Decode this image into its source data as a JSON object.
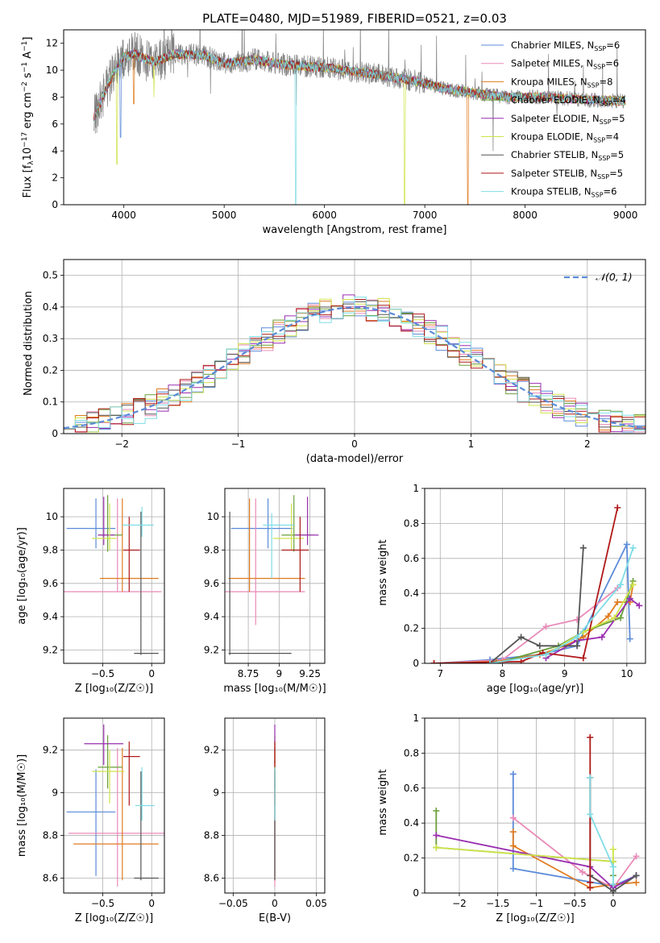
{
  "series_legend": [
    {
      "label": "Chabrier MILES",
      "n": "6",
      "color": "#5b8bd8"
    },
    {
      "label": "Salpeter MILES",
      "n": "6",
      "color": "#e98ab8"
    },
    {
      "label": "Kroupa MILES",
      "n": "8",
      "color": "#e07b20"
    },
    {
      "label": "Chabrier ELODIE",
      "n": "4",
      "color": "#6a9f3a"
    },
    {
      "label": "Salpeter ELODIE",
      "n": "5",
      "color": "#9a2db0"
    },
    {
      "label": "Kroupa ELODIE",
      "n": "4",
      "color": "#cfe34a"
    },
    {
      "label": "Chabrier STELIB",
      "n": "5",
      "color": "#555555"
    },
    {
      "label": "Salpeter STELIB",
      "n": "5",
      "color": "#b01818"
    },
    {
      "label": "Kroupa STELIB",
      "n": "6",
      "color": "#7fdde6"
    }
  ],
  "chart_data": [
    {
      "id": "spectrum",
      "type": "line",
      "title": "PLATE=0480, MJD=51989, FIBERID=0521, z=0.03",
      "xlabel": "wavelength [Angstrom, rest frame]",
      "ylabel_parts": [
        "Flux [f",
        "λ",
        "10",
        "−17",
        " erg cm",
        "−2",
        " s",
        "−1",
        " A",
        "−1",
        "]"
      ],
      "xlim": [
        3400,
        9200
      ],
      "ylim": [
        0,
        13
      ],
      "xticks": [
        4000,
        5000,
        6000,
        7000,
        8000,
        9000
      ],
      "yticks": [
        0,
        2,
        4,
        6,
        8,
        10,
        12
      ],
      "grid": false,
      "legend_position": "top-right",
      "data_color": "#808080",
      "model_continuum": {
        "x": [
          3700,
          3800,
          3900,
          4000,
          4100,
          4200,
          4300,
          4500,
          4800,
          5000,
          5300,
          5600,
          6000,
          6300,
          6600,
          6900,
          7200,
          7500,
          7800,
          8200,
          8600,
          9000
        ],
        "y": [
          6.4,
          8.2,
          9.8,
          11.0,
          11.2,
          10.9,
          10.6,
          11.2,
          11.1,
          10.5,
          10.8,
          10.4,
          10.2,
          9.9,
          9.6,
          9.2,
          8.6,
          8.3,
          8.0,
          8.0,
          7.8,
          7.7
        ]
      },
      "model_dips": [
        {
          "x": 3933,
          "y": 3.0,
          "series": 5
        },
        {
          "x": 3968,
          "y": 5.0,
          "series": 0
        },
        {
          "x": 4101,
          "y": 7.5,
          "series": 2
        },
        {
          "x": 4300,
          "y": 8.0,
          "series": 5
        },
        {
          "x": 5715,
          "y": 0.0,
          "series": 8
        },
        {
          "x": 6800,
          "y": 0.0,
          "series": 5
        },
        {
          "x": 7430,
          "y": 0.0,
          "series": 2
        }
      ]
    },
    {
      "id": "residuals",
      "type": "histogram",
      "xlabel": "(data-model)/error",
      "ylabel": "Normed distribution",
      "xlim": [
        -2.5,
        2.5
      ],
      "ylim": [
        0,
        0.55
      ],
      "xticks": [
        -2,
        -1,
        0,
        1,
        2
      ],
      "yticks": [
        0.0,
        0.1,
        0.2,
        0.3,
        0.4,
        0.5
      ],
      "grid": true,
      "bins": {
        "start": -2.5,
        "width": 0.1,
        "count": 50
      },
      "reference": {
        "label": "𝒩(0, 1)",
        "mu": 0,
        "sigma": 1,
        "color": "#5b8bd8",
        "style": "dashed"
      },
      "legend_position": "top-right"
    },
    {
      "id": "age-vs-z",
      "type": "errorbar",
      "xlabel": "Z [log₁₀(Z/Z☉)]",
      "ylabel": "age  [log₁₀(age/yr)]",
      "xlim": [
        -0.9,
        0.13
      ],
      "ylim": [
        9.12,
        10.17
      ],
      "xticks": [
        -0.5,
        0.0
      ],
      "yticks": [
        9.2,
        9.4,
        9.6,
        9.8,
        10.0
      ],
      "grid": true,
      "points": [
        {
          "series": 0,
          "x": -0.57,
          "y": 9.93,
          "xerr": [
            0.3,
            0.2
          ],
          "yerr": [
            0.12,
            0.18
          ]
        },
        {
          "series": 1,
          "x": -0.35,
          "y": 9.55,
          "xerr": [
            0.55,
            0.45
          ],
          "yerr": [
            0.0,
            0.56
          ]
        },
        {
          "series": 2,
          "x": -0.3,
          "y": 9.63,
          "xerr": [
            0.23,
            0.37
          ],
          "yerr": [
            0.08,
            0.48
          ]
        },
        {
          "series": 3,
          "x": -0.45,
          "y": 9.89,
          "xerr": [
            0.1,
            0.15
          ],
          "yerr": [
            0.1,
            0.24
          ]
        },
        {
          "series": 4,
          "x": -0.49,
          "y": 9.89,
          "xerr": [
            0.06,
            0.11
          ],
          "yerr": [
            0.06,
            0.23
          ]
        },
        {
          "series": 5,
          "x": -0.43,
          "y": 9.87,
          "xerr": [
            0.18,
            0.07
          ],
          "yerr": [
            0.07,
            0.21
          ]
        },
        {
          "series": 6,
          "x": -0.11,
          "y": 9.18,
          "xerr": [
            0.07,
            0.18
          ],
          "yerr": [
            0.01,
            0.85
          ]
        },
        {
          "series": 7,
          "x": -0.23,
          "y": 9.8,
          "xerr": [
            0.06,
            0.11
          ],
          "yerr": [
            0.25,
            0.2
          ]
        },
        {
          "series": 8,
          "x": -0.1,
          "y": 9.95,
          "xerr": [
            0.2,
            0.12
          ],
          "yerr": [
            0.07,
            0.11
          ]
        }
      ]
    },
    {
      "id": "age-vs-mass",
      "type": "errorbar",
      "xlabel": "mass [log₁₀(M/M☉)]",
      "xlim": [
        8.56,
        9.37
      ],
      "ylim": [
        9.12,
        10.17
      ],
      "xticks": [
        8.75,
        9.0,
        9.25
      ],
      "yticks": [
        9.2,
        9.4,
        9.6,
        9.8,
        10.0
      ],
      "grid": true,
      "points": [
        {
          "series": 0,
          "x": 8.91,
          "y": 9.93,
          "xerr": [
            0.3,
            0.2
          ],
          "yerr": [
            0.12,
            0.18
          ]
        },
        {
          "series": 1,
          "x": 8.81,
          "y": 9.55,
          "xerr": [
            0.25,
            0.4
          ],
          "yerr": [
            0.2,
            0.56
          ]
        },
        {
          "series": 2,
          "x": 8.76,
          "y": 9.63,
          "xerr": [
            0.17,
            0.45
          ],
          "yerr": [
            0.08,
            0.48
          ]
        },
        {
          "series": 3,
          "x": 9.12,
          "y": 9.89,
          "xerr": [
            0.1,
            0.15
          ],
          "yerr": [
            0.1,
            0.24
          ]
        },
        {
          "series": 4,
          "x": 9.23,
          "y": 9.89,
          "xerr": [
            0.1,
            0.09
          ],
          "yerr": [
            0.06,
            0.23
          ]
        },
        {
          "series": 5,
          "x": 9.1,
          "y": 9.87,
          "xerr": [
            0.15,
            0.1
          ],
          "yerr": [
            0.07,
            0.21
          ]
        },
        {
          "series": 6,
          "x": 8.6,
          "y": 9.18,
          "xerr": [
            0.01,
            0.5
          ],
          "yerr": [
            0.01,
            0.85
          ]
        },
        {
          "series": 7,
          "x": 9.17,
          "y": 9.8,
          "xerr": [
            0.15,
            0.07
          ],
          "yerr": [
            0.25,
            0.2
          ]
        },
        {
          "series": 8,
          "x": 8.94,
          "y": 9.95,
          "xerr": [
            0.07,
            0.18
          ],
          "yerr": [
            0.32,
            0.07
          ]
        }
      ]
    },
    {
      "id": "weight-vs-age",
      "type": "line",
      "xlabel": "age  [log₁₀(age/yr)]",
      "ylabel": "mass weight",
      "xlim": [
        6.75,
        10.3
      ],
      "ylim": [
        0,
        1.0
      ],
      "xticks": [
        7,
        8,
        9,
        10
      ],
      "yticks": [
        0.0,
        0.2,
        0.4,
        0.6,
        0.8,
        1.0
      ],
      "grid": true,
      "series": [
        {
          "series": 0,
          "x": [
            6.9,
            7.8,
            8.6,
            9.2,
            10.0,
            10.05
          ],
          "y": [
            0.0,
            0.02,
            0.05,
            0.1,
            0.68,
            0.14
          ]
        },
        {
          "series": 1,
          "x": [
            6.9,
            8.0,
            8.7,
            9.2,
            9.85
          ],
          "y": [
            0.0,
            0.02,
            0.21,
            0.25,
            0.43
          ]
        },
        {
          "series": 2,
          "x": [
            6.9,
            7.9,
            8.6,
            9.0,
            9.3,
            9.7,
            9.85,
            10.05,
            10.1
          ],
          "y": [
            0.0,
            0.01,
            0.05,
            0.1,
            0.15,
            0.27,
            0.35,
            0.35,
            0.45
          ]
        },
        {
          "series": 3,
          "x": [
            7.9,
            8.9,
            9.3,
            9.9,
            10.1
          ],
          "y": [
            0.0,
            0.1,
            0.18,
            0.26,
            0.47
          ]
        },
        {
          "series": 4,
          "x": [
            8.7,
            9.2,
            9.6,
            10.05,
            10.2
          ],
          "y": [
            0.03,
            0.13,
            0.15,
            0.37,
            0.33
          ]
        },
        {
          "series": 5,
          "x": [
            8.7,
            9.3,
            9.8,
            10.1
          ],
          "y": [
            0.05,
            0.18,
            0.26,
            0.45
          ]
        },
        {
          "series": 6,
          "x": [
            7.8,
            8.3,
            8.6,
            9.2,
            9.3
          ],
          "y": [
            0.0,
            0.15,
            0.1,
            0.1,
            0.66
          ]
        },
        {
          "series": 7,
          "x": [
            6.9,
            8.3,
            8.65,
            9.3,
            9.85
          ],
          "y": [
            0.0,
            0.01,
            0.06,
            0.03,
            0.89
          ]
        },
        {
          "series": 8,
          "x": [
            7.8,
            8.7,
            9.2,
            9.9,
            10.1
          ],
          "y": [
            0.0,
            0.05,
            0.15,
            0.45,
            0.66
          ]
        }
      ]
    },
    {
      "id": "mass-vs-z",
      "type": "errorbar",
      "xlabel": "Z [log₁₀(Z/Z☉)]",
      "ylabel": "mass [log₁₀(M/M☉)]",
      "xlim": [
        -0.9,
        0.13
      ],
      "ylim": [
        8.53,
        9.35
      ],
      "xticks": [
        -0.5,
        0.0
      ],
      "yticks": [
        8.6,
        8.8,
        9.0,
        9.2
      ],
      "grid": true,
      "points": [
        {
          "series": 0,
          "x": -0.57,
          "y": 8.91,
          "xerr": [
            0.3,
            0.2
          ],
          "yerr": [
            0.3,
            0.2
          ]
        },
        {
          "series": 1,
          "x": -0.35,
          "y": 8.81,
          "xerr": [
            0.5,
            0.5
          ],
          "yerr": [
            0.25,
            0.4
          ]
        },
        {
          "series": 2,
          "x": -0.3,
          "y": 8.76,
          "xerr": [
            0.5,
            0.37
          ],
          "yerr": [
            0.17,
            0.45
          ]
        },
        {
          "series": 3,
          "x": -0.45,
          "y": 9.12,
          "xerr": [
            0.1,
            0.15
          ],
          "yerr": [
            0.1,
            0.15
          ]
        },
        {
          "series": 4,
          "x": -0.49,
          "y": 9.23,
          "xerr": [
            0.2,
            0.2
          ],
          "yerr": [
            0.1,
            0.09
          ]
        },
        {
          "series": 5,
          "x": -0.43,
          "y": 9.1,
          "xerr": [
            0.18,
            0.15
          ],
          "yerr": [
            0.15,
            0.1
          ]
        },
        {
          "series": 6,
          "x": -0.11,
          "y": 8.6,
          "xerr": [
            0.07,
            0.18
          ],
          "yerr": [
            0.01,
            0.5
          ]
        },
        {
          "series": 7,
          "x": -0.23,
          "y": 9.17,
          "xerr": [
            0.06,
            0.11
          ],
          "yerr": [
            0.23,
            0.07
          ]
        },
        {
          "series": 8,
          "x": -0.1,
          "y": 8.94,
          "xerr": [
            0.07,
            0.13
          ],
          "yerr": [
            0.07,
            0.18
          ]
        }
      ]
    },
    {
      "id": "mass-vs-ebv",
      "type": "errorbar",
      "xlabel": "E(B-V)",
      "xlim": [
        -0.06,
        0.06
      ],
      "ylim": [
        8.53,
        9.35
      ],
      "xticks": [
        -0.05,
        0.0,
        0.05
      ],
      "yticks": [
        8.6,
        8.8,
        9.0,
        9.2
      ],
      "grid": true,
      "points": [
        {
          "series": 0,
          "x": 0.0,
          "y": 8.91,
          "yerr": [
            0.3,
            0.2
          ]
        },
        {
          "series": 1,
          "x": 0.0,
          "y": 8.81,
          "yerr": [
            0.25,
            0.4
          ]
        },
        {
          "series": 2,
          "x": 0.0,
          "y": 8.76,
          "yerr": [
            0.17,
            0.45
          ]
        },
        {
          "series": 3,
          "x": 0.0,
          "y": 9.12,
          "yerr": [
            0.1,
            0.15
          ]
        },
        {
          "series": 4,
          "x": 0.0,
          "y": 9.23,
          "yerr": [
            0.1,
            0.09
          ]
        },
        {
          "series": 5,
          "x": 0.0,
          "y": 9.1,
          "yerr": [
            0.15,
            0.1
          ]
        },
        {
          "series": 6,
          "x": 0.0,
          "y": 8.6,
          "yerr": [
            0.01,
            0.5
          ]
        },
        {
          "series": 7,
          "x": 0.0,
          "y": 9.17,
          "yerr": [
            0.23,
            0.07
          ]
        },
        {
          "series": 8,
          "x": 0.0,
          "y": 8.94,
          "yerr": [
            0.07,
            0.18
          ]
        }
      ]
    },
    {
      "id": "weight-vs-z",
      "type": "line",
      "xlabel": "Z [log₁₀(Z/Z☉)]",
      "ylabel": "mass weight",
      "xlim": [
        -2.45,
        0.42
      ],
      "ylim": [
        0,
        1.0
      ],
      "xticks": [
        -2.0,
        -1.5,
        -1.0,
        -0.5,
        0.0
      ],
      "yticks": [
        0.0,
        0.2,
        0.4,
        0.6,
        0.8,
        1.0
      ],
      "grid": true,
      "series": [
        {
          "series": 0,
          "x": [
            -1.3,
            -1.3,
            0.0,
            0.3
          ],
          "y": [
            0.68,
            0.14,
            0.04,
            0.1
          ]
        },
        {
          "series": 1,
          "x": [
            -1.3,
            -0.4,
            0.0,
            0.3
          ],
          "y": [
            0.43,
            0.12,
            0.03,
            0.21
          ]
        },
        {
          "series": 2,
          "x": [
            -1.3,
            -1.3,
            -0.3,
            0.0,
            0.3
          ],
          "y": [
            0.35,
            0.27,
            0.03,
            0.05,
            0.06
          ]
        },
        {
          "series": 3,
          "x": [
            -2.3,
            -2.3,
            0.0,
            0.0
          ],
          "y": [
            0.47,
            0.26,
            0.18,
            0.1
          ]
        },
        {
          "series": 4,
          "x": [
            -2.3,
            -0.3,
            0.0,
            0.3
          ],
          "y": [
            0.33,
            0.15,
            0.03,
            0.1
          ]
        },
        {
          "series": 5,
          "x": [
            -2.3,
            0.0,
            0.0
          ],
          "y": [
            0.26,
            0.18,
            0.25
          ]
        },
        {
          "series": 6,
          "x": [
            -0.3,
            -0.3,
            0.0,
            0.3
          ],
          "y": [
            0.66,
            0.1,
            0.01,
            0.1
          ]
        },
        {
          "series": 7,
          "x": [
            -0.3,
            -0.3,
            -0.3
          ],
          "y": [
            0.89,
            0.06,
            0.03
          ]
        },
        {
          "series": 8,
          "x": [
            -0.3,
            -0.3,
            0.0,
            0.0
          ],
          "y": [
            0.66,
            0.45,
            0.15,
            0.05
          ]
        }
      ]
    }
  ]
}
